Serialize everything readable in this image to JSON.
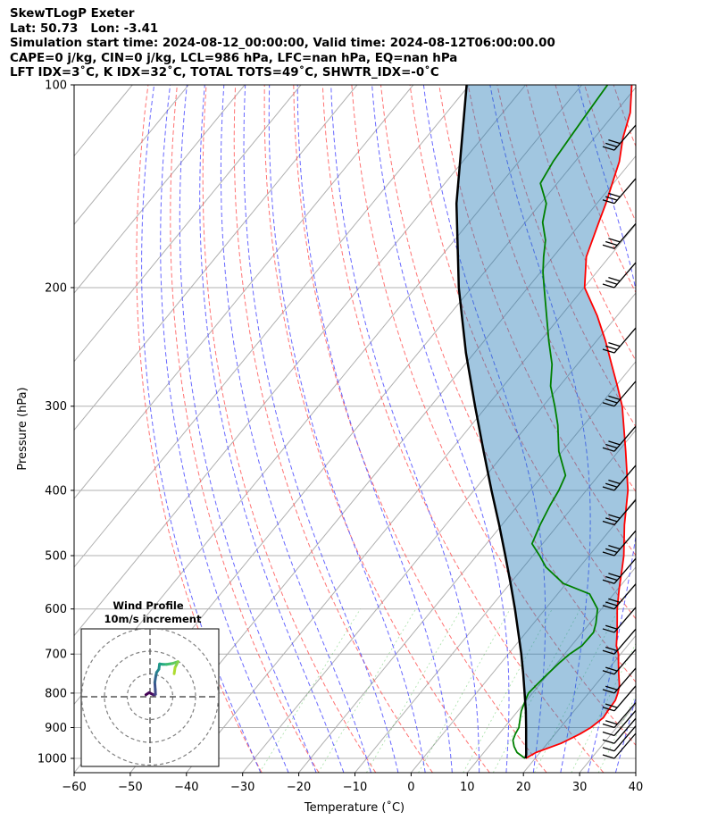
{
  "header": {
    "line1": "SkewTLogP Exeter",
    "line2": "Lat: 50.73   Lon: -3.41",
    "line3": "Simulation start time: 2024-08-12_00:00:00, Valid time: 2024-08-12T06:00:00.00",
    "line4": "CAPE=0 j/kg, CIN=0 j/kg, LCL=986 hPa, LFC=nan hPa, EQ=nan hPa",
    "line5": "LFT IDX=3˚C, K IDX=32˚C, TOTAL TOTS=49˚C, SHWTR_IDX=-0˚C"
  },
  "chart_data": {
    "type": "line",
    "xlabel": "Temperature (˚C)",
    "ylabel": "Pressure (hPa)",
    "xlim": [
      -60,
      40
    ],
    "ylim": [
      1050,
      100
    ],
    "y_scale": "log",
    "x_ticks": [
      "−60",
      "−50",
      "−40",
      "−30",
      "−20",
      "−10",
      "0",
      "10",
      "20",
      "30",
      "40"
    ],
    "x_tick_values": [
      -60,
      -50,
      -40,
      -30,
      -20,
      -10,
      0,
      10,
      20,
      30,
      40
    ],
    "y_ticks": [
      "100",
      "200",
      "300",
      "400",
      "500",
      "600",
      "700",
      "800",
      "900",
      "1000"
    ],
    "y_tick_values": [
      100,
      200,
      300,
      400,
      500,
      600,
      700,
      800,
      900,
      1000
    ],
    "grid": true,
    "series": [
      {
        "role": "temperature",
        "color": "#ff0000",
        "pressure": [
          1000,
          980,
          950,
          920,
          900,
          870,
          850,
          820,
          800,
          780,
          750,
          720,
          700,
          680,
          650,
          620,
          600,
          560,
          520,
          500,
          450,
          400,
          350,
          300,
          280,
          260,
          240,
          220,
          200,
          180,
          160,
          150,
          140,
          130,
          120,
          110,
          100
        ],
        "temp": [
          18.3,
          19.3,
          22.4,
          24.4,
          25.4,
          26.2,
          26.0,
          25.8,
          25.2,
          24.4,
          22.6,
          20.8,
          19.6,
          18.0,
          16.2,
          14.2,
          12.8,
          10.2,
          7.6,
          6.2,
          1.8,
          -2.6,
          -8.7,
          -15.9,
          -19.7,
          -23.9,
          -28.4,
          -33.6,
          -39.9,
          -44.1,
          -46.9,
          -48.4,
          -50.2,
          -52.1,
          -54.9,
          -57.3,
          -61.1
        ]
      },
      {
        "role": "dewpoint",
        "color": "#008000",
        "pressure": [
          1000,
          980,
          960,
          940,
          920,
          900,
          880,
          850,
          820,
          800,
          780,
          750,
          720,
          700,
          680,
          650,
          630,
          600,
          570,
          550,
          520,
          500,
          480,
          450,
          420,
          400,
          380,
          350,
          320,
          300,
          280,
          260,
          240,
          220,
          200,
          190,
          180,
          170,
          160,
          150,
          140,
          130,
          120,
          110,
          100
        ],
        "temp": [
          18.2,
          15.9,
          14.5,
          13.4,
          12.9,
          12.6,
          11.8,
          10.6,
          9.8,
          9.3,
          9.5,
          9.9,
          10.4,
          10.9,
          11.9,
          12.0,
          11.1,
          9.3,
          5.7,
          -0.5,
          -6.0,
          -8.8,
          -11.9,
          -13.2,
          -14.3,
          -14.9,
          -15.9,
          -20.6,
          -24.6,
          -27.9,
          -31.6,
          -34.5,
          -38.5,
          -42.6,
          -47.1,
          -49.5,
          -51.7,
          -53.8,
          -56.9,
          -59.0,
          -63.0,
          -63.9,
          -64.4,
          -64.9,
          -65.4
        ]
      },
      {
        "role": "parcel",
        "color": "#000000",
        "pressure": [
          1000,
          986,
          950,
          900,
          850,
          800,
          750,
          700,
          650,
          600,
          550,
          500,
          450,
          400,
          350,
          300,
          250,
          200,
          150,
          100
        ],
        "temp": [
          18.3,
          17.8,
          16.2,
          13.9,
          11.4,
          8.6,
          5.6,
          2.3,
          -1.4,
          -5.4,
          -9.9,
          -14.9,
          -20.5,
          -26.9,
          -34.0,
          -42.1,
          -51.5,
          -62.3,
          -75.0,
          -90.5
        ]
      }
    ]
  },
  "inset": {
    "title": "Wind Profile",
    "subtitle": "10m/s increment",
    "hodograph_u": [
      -1.8,
      -0.4,
      1.7,
      2.4,
      2.3,
      2.1,
      2.6,
      2.9,
      3.9,
      4.2,
      5.6,
      7.3,
      9.8,
      12.3,
      11.0,
      10.6
    ],
    "hodograph_v": [
      0.9,
      1.8,
      0.8,
      1.1,
      3.3,
      6.3,
      9.4,
      10.7,
      12.1,
      14.4,
      14.2,
      14.2,
      14.6,
      15.4,
      12.8,
      10.1
    ]
  }
}
